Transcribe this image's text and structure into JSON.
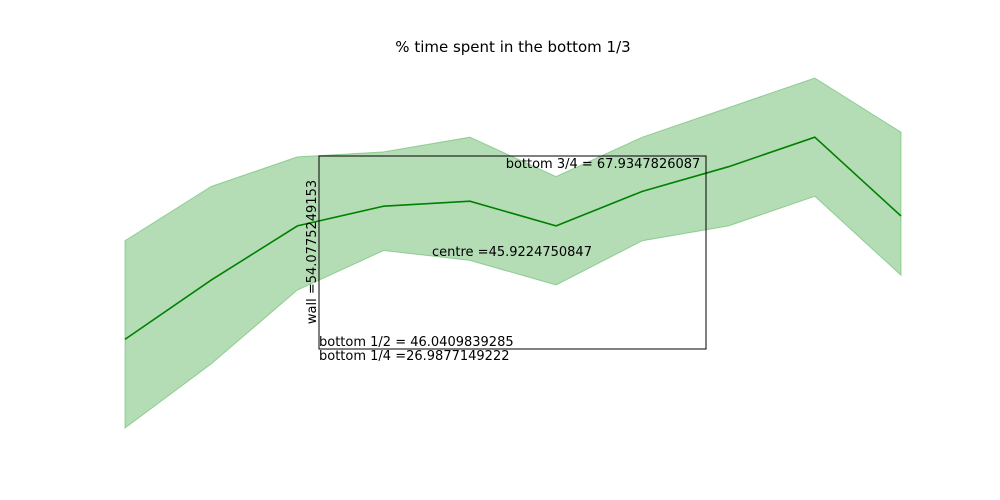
{
  "chart_data": {
    "type": "line",
    "title": "% time spent in the bottom 1/3",
    "xlabel": "",
    "ylabel": "",
    "axes_visible": false,
    "grid": false,
    "x": [
      0,
      1,
      2,
      3,
      4,
      5,
      6,
      7,
      8,
      9
    ],
    "series": [
      {
        "values": [
          0.3,
          0.42,
          0.53,
          0.57,
          0.58,
          0.53,
          0.6,
          0.65,
          0.71,
          0.55
        ],
        "lower": [
          0.12,
          0.25,
          0.4,
          0.48,
          0.46,
          0.41,
          0.5,
          0.53,
          0.59,
          0.43
        ],
        "upper": [
          0.5,
          0.61,
          0.67,
          0.68,
          0.71,
          0.63,
          0.71,
          0.77,
          0.83,
          0.72
        ]
      }
    ],
    "ylim": [
      0.12,
      0.83
    ],
    "colors": {
      "line": "#008000",
      "band": "#4CAF50"
    },
    "annotations": {
      "bottom_three_quarter": "bottom 3/4 = 67.9347826087",
      "centre": "centre =45.9224750847",
      "wall": "wall =54.0775249153",
      "bottom_half": "bottom 1/2 = 46.0409839285",
      "bottom_quarter": "bottom 1/4 =26.9877149222"
    }
  }
}
